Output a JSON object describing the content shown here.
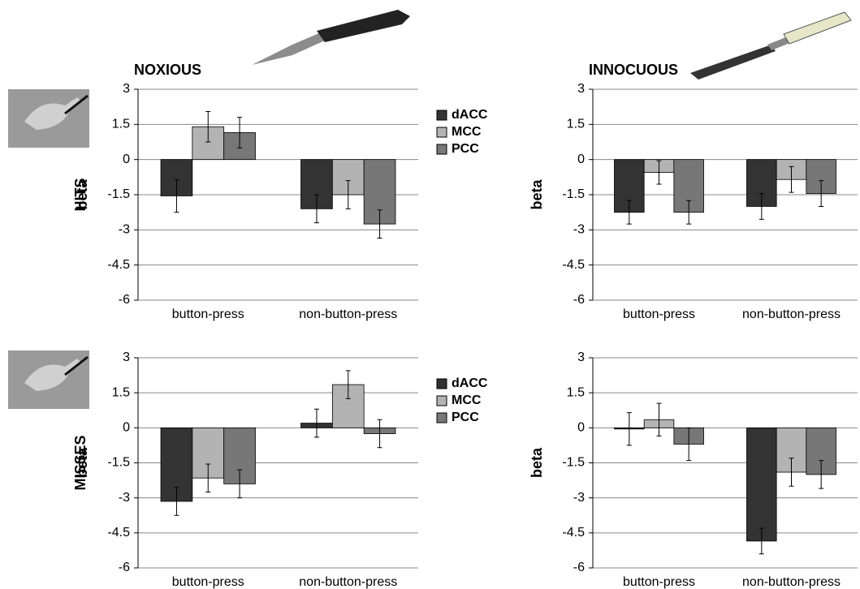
{
  "chart_data": [
    {
      "type": "bar",
      "title": "NOXIOUS",
      "row_label": "HITS",
      "ylabel": "beta",
      "categories": [
        "button-press",
        "non-button-press"
      ],
      "series": [
        {
          "name": "dACC",
          "color": "#333333",
          "values": [
            -1.55,
            -2.1
          ],
          "errors": [
            0.7,
            0.6
          ]
        },
        {
          "name": "MCC",
          "color": "#b3b3b3",
          "values": [
            1.4,
            -1.5
          ],
          "errors": [
            0.65,
            0.6
          ]
        },
        {
          "name": "PCC",
          "color": "#777777",
          "values": [
            1.15,
            -2.75
          ],
          "errors": [
            0.65,
            0.6
          ]
        }
      ],
      "ylim": [
        -6,
        3
      ],
      "yticks": [
        3,
        1.5,
        0,
        -1.5,
        -3,
        -4.5,
        -6
      ],
      "grid": true,
      "legend": "right"
    },
    {
      "type": "bar",
      "title": "INNOCUOUS",
      "ylabel": "beta",
      "categories": [
        "button-press",
        "non-button-press"
      ],
      "series": [
        {
          "name": "dACC",
          "color": "#333333",
          "values": [
            -2.25,
            -2.0
          ],
          "errors": [
            0.5,
            0.55
          ]
        },
        {
          "name": "MCC",
          "color": "#b3b3b3",
          "values": [
            -0.55,
            -0.85
          ],
          "errors": [
            0.5,
            0.55
          ]
        },
        {
          "name": "PCC",
          "color": "#777777",
          "values": [
            -2.25,
            -1.45
          ],
          "errors": [
            0.5,
            0.55
          ]
        }
      ],
      "ylim": [
        -6,
        3
      ],
      "yticks": [
        3,
        1.5,
        0,
        -1.5,
        -3,
        -4.5,
        -6
      ],
      "grid": true
    },
    {
      "type": "bar",
      "row_label": "MISSES",
      "ylabel": "beta",
      "categories": [
        "button-press",
        "non-button-press"
      ],
      "series": [
        {
          "name": "dACC",
          "color": "#333333",
          "values": [
            -3.15,
            0.2
          ],
          "errors": [
            0.6,
            0.6
          ]
        },
        {
          "name": "MCC",
          "color": "#b3b3b3",
          "values": [
            -2.15,
            1.85
          ],
          "errors": [
            0.6,
            0.6
          ]
        },
        {
          "name": "PCC",
          "color": "#777777",
          "values": [
            -2.4,
            -0.25
          ],
          "errors": [
            0.6,
            0.6
          ]
        }
      ],
      "ylim": [
        -6,
        3
      ],
      "yticks": [
        3,
        1.5,
        0,
        -1.5,
        -3,
        -4.5,
        -6
      ],
      "grid": true,
      "legend": "right"
    },
    {
      "type": "bar",
      "ylabel": "beta",
      "categories": [
        "button-press",
        "non-button-press"
      ],
      "series": [
        {
          "name": "dACC",
          "color": "#333333",
          "values": [
            -0.05,
            -4.85
          ],
          "errors": [
            0.7,
            0.55
          ]
        },
        {
          "name": "MCC",
          "color": "#b3b3b3",
          "values": [
            0.35,
            -1.9
          ],
          "errors": [
            0.7,
            0.6
          ]
        },
        {
          "name": "PCC",
          "color": "#777777",
          "values": [
            -0.7,
            -2.0
          ],
          "errors": [
            0.7,
            0.6
          ]
        }
      ],
      "ylim": [
        -6,
        3
      ],
      "yticks": [
        3,
        1.5,
        0,
        -1.5,
        -3,
        -4.5,
        -6
      ],
      "grid": true
    }
  ]
}
